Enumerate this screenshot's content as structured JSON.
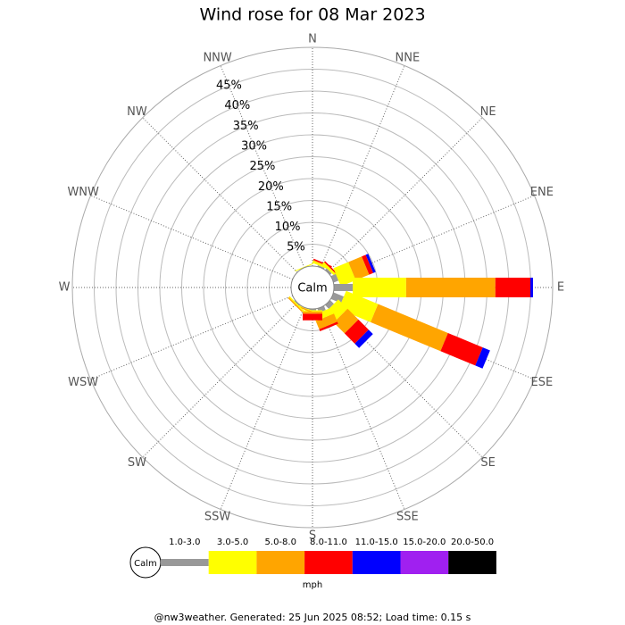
{
  "chart_data": {
    "type": "rose",
    "title": "Wind rose for 08 Mar 2023",
    "categories": [
      "N",
      "NNE",
      "NE",
      "ENE",
      "E",
      "ESE",
      "SE",
      "SSE",
      "S",
      "SSW",
      "SW",
      "WSW",
      "W",
      "WNW",
      "NW",
      "NNW"
    ],
    "series": [
      {
        "name": "1.0-3.0",
        "color": "#999999",
        "values": [
          0,
          0.3,
          0.5,
          1.2,
          4.3,
          2.5,
          1.2,
          1,
          0.3,
          0,
          0.2,
          0,
          0,
          0,
          0,
          0
        ]
      },
      {
        "name": "3.0-5.0",
        "color": "#ffff00",
        "values": [
          0,
          0.5,
          0.6,
          3.7,
          12.2,
          7.9,
          3,
          1.5,
          0.3,
          0.2,
          0.3,
          0,
          0,
          0,
          0,
          0.2
        ]
      },
      {
        "name": "5.0-8.0",
        "color": "#ffa500",
        "values": [
          0,
          0.2,
          0,
          3.3,
          20.4,
          17.3,
          3.5,
          2,
          0.5,
          0.3,
          0.3,
          0,
          0,
          0,
          0,
          0
        ]
      },
      {
        "name": "8.0-11.0",
        "color": "#ff0000",
        "values": [
          0,
          0.3,
          0.3,
          1,
          8,
          8.6,
          3.3,
          0.5,
          1.5,
          0,
          0,
          0,
          0,
          0,
          0,
          0
        ]
      },
      {
        "name": "11.0-15.0",
        "color": "#0000ff",
        "values": [
          0,
          0,
          0,
          0.6,
          0.6,
          1.8,
          1.4,
          0,
          0,
          0,
          0,
          0,
          0,
          0,
          0,
          0
        ]
      },
      {
        "name": "15.0-20.0",
        "color": "#a020f0",
        "values": [
          0,
          0,
          0,
          0,
          0,
          0,
          0,
          0,
          0,
          0,
          0,
          0,
          0,
          0,
          0,
          0
        ]
      },
      {
        "name": "20.0-50.0",
        "color": "#000000",
        "values": [
          0,
          0,
          0,
          0,
          0,
          0,
          0,
          0,
          0,
          0,
          0,
          0,
          0,
          0,
          0,
          0
        ]
      }
    ],
    "ylim": [
      0,
      50
    ],
    "yticks": [
      {
        "value": 5,
        "label": "5%"
      },
      {
        "value": 10,
        "label": "10%"
      },
      {
        "value": 15,
        "label": "15%"
      },
      {
        "value": 20,
        "label": "20%"
      },
      {
        "value": 25,
        "label": "25%"
      },
      {
        "value": 30,
        "label": "30%"
      },
      {
        "value": 35,
        "label": "35%"
      },
      {
        "value": 40,
        "label": "40%"
      },
      {
        "value": 45,
        "label": "45%"
      }
    ],
    "calm_label": "Calm",
    "unit": "mph",
    "footer": "@nw3weather. Generated: 25 Jun 2025 08:52; Load time: 0.15 s"
  }
}
